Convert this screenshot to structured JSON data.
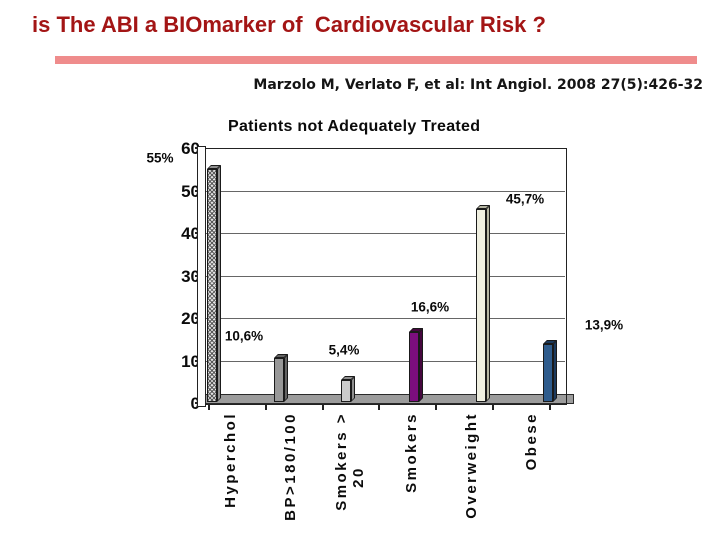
{
  "slide": {
    "title": "is The ABI a BIOmarker of  Cardiovascular Risk ?",
    "title_color": "#a31515",
    "accent_bar_color": "#ef8c8c",
    "citation": "Marzolo M, Verlato F, et al: Int Angiol. 2008 27(5):426-32"
  },
  "chart_data": {
    "type": "bar",
    "style": "3d-column",
    "title": "Patients not Adequately Treated",
    "unit": "%",
    "categories": [
      "Hyperchol",
      "BP>180/100",
      "Smokers > 20",
      "Smokers",
      "Overweight",
      "Obese"
    ],
    "values": [
      55,
      10.6,
      5.4,
      16.6,
      45.7,
      13.9
    ],
    "value_labels": [
      "55%",
      "10,6%",
      "5,4%",
      "16,6%",
      "45,7%",
      "13,9%"
    ],
    "x_label_lines": [
      [
        "Hyperchol"
      ],
      [
        "BP>180/100"
      ],
      [
        "Smokers >",
        "20"
      ],
      [
        "Smokers"
      ],
      [
        "Overweight"
      ],
      [
        "Obese"
      ]
    ],
    "ylim": [
      0,
      60
    ],
    "yticks": [
      0,
      10,
      20,
      30,
      40,
      50,
      60
    ],
    "grid": true,
    "legend": "none",
    "bars": [
      {
        "fill": "crosshatch",
        "base": "#e3e3e3",
        "hatch_line": "#5a5a5a",
        "side": "#8f8f8f"
      },
      {
        "fill": "#989898",
        "side": "#636363"
      },
      {
        "fill": "#cbcbcb",
        "side": "#8f8f8f"
      },
      {
        "fill": "#7c0e7e",
        "side": "#45073f"
      },
      {
        "fill": "#efefe0",
        "side": "#b5b5a2"
      },
      {
        "fill": "#2f5c8d",
        "side": "#1c3a5e"
      }
    ]
  }
}
